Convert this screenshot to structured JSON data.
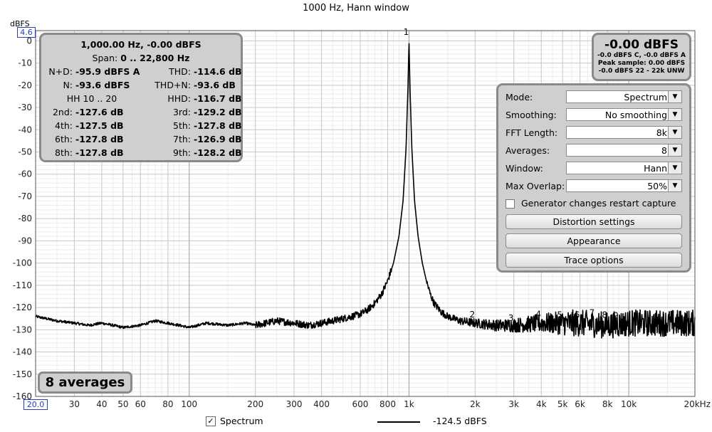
{
  "chart_data": {
    "type": "line",
    "title": "1000 Hz, Hann window",
    "ylabel": "dBFS",
    "x_scale": "log",
    "xlim": [
      20,
      20000
    ],
    "ylim": [
      -160,
      4.6
    ],
    "ylim_top_label": "4.6",
    "xlim_left_label": "20.0",
    "y_ticks": [
      0,
      -10,
      -20,
      -30,
      -40,
      -50,
      -60,
      -70,
      -80,
      -90,
      -100,
      -110,
      -120,
      -130,
      -140,
      -150,
      -160
    ],
    "y_tick_labels": [
      "0",
      "-10",
      "-20",
      "-30",
      "-40",
      "-50",
      "-60",
      "-70",
      "-80",
      "-90",
      "-100",
      "-110",
      "-120",
      "-130",
      "-140",
      "-150",
      "-160"
    ],
    "x_ticks": [
      30,
      40,
      50,
      60,
      80,
      100,
      200,
      300,
      400,
      600,
      800,
      1000,
      2000,
      3000,
      4000,
      5000,
      6000,
      8000,
      10000,
      20000
    ],
    "x_tick_labels": [
      "30",
      "40",
      "50",
      "60",
      "80",
      "100",
      "200",
      "300",
      "400",
      "600",
      "800",
      "1k",
      "2k",
      "3k",
      "4k",
      "5k",
      "6k",
      "8k",
      "10k",
      "20kHz"
    ],
    "grid": true,
    "series": [
      {
        "name": "Spectrum",
        "legend_value": "-124.5 dBFS",
        "color": "#000000",
        "x": [
          20,
          25,
          30,
          35,
          40,
          45,
          50,
          60,
          70,
          80,
          90,
          100,
          120,
          150,
          180,
          200,
          250,
          300,
          350,
          400,
          450,
          500,
          550,
          600,
          650,
          700,
          750,
          800,
          850,
          900,
          940,
          970,
          990,
          1000,
          1010,
          1030,
          1060,
          1100,
          1150,
          1200,
          1250,
          1300,
          1400,
          1500,
          1700,
          2000,
          2500,
          3000,
          4000,
          5000,
          6000,
          8000,
          10000,
          14000,
          20000
        ],
        "y": [
          -124,
          -126,
          -127,
          -128,
          -127,
          -128,
          -129,
          -128,
          -126,
          -127,
          -128,
          -129,
          -127,
          -128,
          -127,
          -128,
          -126,
          -127,
          -128,
          -127,
          -126,
          -125,
          -124,
          -123,
          -121,
          -118,
          -114,
          -108,
          -100,
          -88,
          -72,
          -48,
          -20,
          0,
          -20,
          -48,
          -72,
          -88,
          -100,
          -108,
          -114,
          -118,
          -122,
          -124,
          -126,
          -127,
          -128,
          -128,
          -127,
          -127,
          -127,
          -128,
          -127,
          -127,
          -127
        ]
      }
    ],
    "harmonic_markers": [
      {
        "label": "1",
        "freq": 1000,
        "level": 0
      },
      {
        "label": "2",
        "freq": 2000,
        "level": -127.6
      },
      {
        "label": "3",
        "freq": 3000,
        "level": -129.2
      },
      {
        "label": "4",
        "freq": 4000,
        "level": -127.5
      },
      {
        "label": "5",
        "freq": 5000,
        "level": -127.8
      },
      {
        "label": "6",
        "freq": 6000,
        "level": -127.8
      },
      {
        "label": "7",
        "freq": 7000,
        "level": -126.9
      },
      {
        "label": "8",
        "freq": 8000,
        "level": -127.8
      },
      {
        "label": "9",
        "freq": 9000,
        "level": -128.2
      }
    ]
  },
  "stats": {
    "line1": "1,000.00 Hz, -0.00 dBFS",
    "span_label": "Span:",
    "span_value": "0 .. 22,800 Hz",
    "rows": [
      {
        "l_label": "N+D:",
        "l_value": "-95.9 dBFS A",
        "r_label": "THD:",
        "r_value": "-114.6 dB"
      },
      {
        "l_label": "N:",
        "l_value": "-93.6 dBFS",
        "r_label": "THD+N:",
        "r_value": "-93.6 dB"
      },
      {
        "l_label": "",
        "l_value": "",
        "r_label": "HHD:",
        "r_value": "-116.7 dB"
      },
      {
        "l_label": "2nd:",
        "l_value": "-127.6 dB",
        "r_label": "3rd:",
        "r_value": "-129.2 dB"
      },
      {
        "l_label": "4th:",
        "l_value": "-127.5 dB",
        "r_label": "5th:",
        "r_value": "-127.8 dB"
      },
      {
        "l_label": "6th:",
        "l_value": "-127.8 dB",
        "r_label": "7th:",
        "r_value": "-126.9 dB"
      },
      {
        "l_label": "8th:",
        "l_value": "-127.8 dB",
        "r_label": "9th:",
        "r_value": "-128.2 dB"
      }
    ],
    "hh_text": "HH 10 .. 20"
  },
  "peak": {
    "big": "-0.00 dBFS",
    "line1": "-0.0 dBFS C, -0.0 dBFS A",
    "line2": "Peak sample: 0.00 dBFS",
    "line3": "-0.0 dBFS 22 - 22k UNW"
  },
  "controls": {
    "mode_label": "Mode:",
    "mode_value": "Spectrum",
    "smoothing_label": "Smoothing:",
    "smoothing_value": "No  smoothing",
    "fft_label": "FFT Length:",
    "fft_value": "8k",
    "averages_label": "Averages:",
    "averages_value": "8",
    "window_label": "Window:",
    "window_value": "Hann",
    "overlap_label": "Max Overlap:",
    "overlap_value": "50%",
    "generator_label": "Generator changes restart capture",
    "distortion_button": "Distortion settings",
    "appearance_button": "Appearance",
    "trace_button": "Trace options"
  },
  "averages_badge": "8 averages"
}
